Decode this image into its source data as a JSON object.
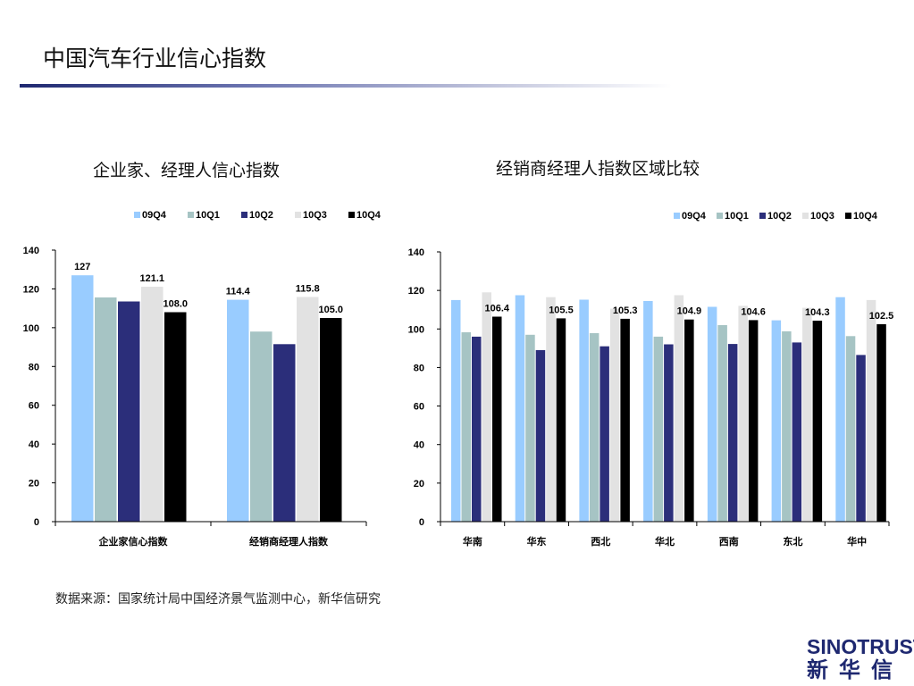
{
  "page": {
    "title": "中国汽车行业信心指数",
    "source": "数据来源：国家统计局中国经济景气监测中心，新华信研究",
    "logo_en": "SINOTRUST",
    "logo_cn": "新华信"
  },
  "colors": {
    "09Q4": "#99ccff",
    "10Q1": "#a6c4c4",
    "10Q2": "#2b2e7a",
    "10Q3": "#e2e2e2",
    "10Q4": "#000000",
    "title_rule": "#1e2870"
  },
  "chart_data": [
    {
      "type": "bar",
      "title": "企业家、经理人信心指数",
      "categories": [
        "企业家信心指数",
        "经销商经理人指数"
      ],
      "series": [
        {
          "name": "09Q4",
          "values": [
            127,
            114.4
          ]
        },
        {
          "name": "10Q1",
          "values": [
            115.6,
            98
          ]
        },
        {
          "name": "10Q2",
          "values": [
            113.5,
            91.5
          ]
        },
        {
          "name": "10Q3",
          "values": [
            121.1,
            115.8
          ]
        },
        {
          "name": "10Q4",
          "values": [
            108.0,
            105.0
          ]
        }
      ],
      "data_labels": [
        {
          "category": 0,
          "series": 0,
          "text": "127"
        },
        {
          "category": 0,
          "series": 3,
          "text": "121.1"
        },
        {
          "category": 0,
          "series": 4,
          "text": "108.0"
        },
        {
          "category": 1,
          "series": 0,
          "text": "114.4"
        },
        {
          "category": 1,
          "series": 3,
          "text": "115.8"
        },
        {
          "category": 1,
          "series": 4,
          "text": "105.0"
        }
      ],
      "ylim": [
        0,
        140
      ],
      "yticks": [
        "0",
        "20",
        "40",
        "60",
        "80",
        "100",
        "120",
        "140"
      ],
      "legend": "top",
      "grid": false
    },
    {
      "type": "bar",
      "title": "经销商经理人指数区域比较",
      "categories": [
        "华南",
        "华东",
        "西北",
        "华北",
        "西南",
        "东北",
        "华中"
      ],
      "series": [
        {
          "name": "09Q4",
          "values": [
            115,
            117.5,
            115.2,
            114.5,
            111.5,
            104.5,
            116.5
          ]
        },
        {
          "name": "10Q1",
          "values": [
            98.3,
            97,
            97.8,
            96,
            102,
            98.8,
            96.3
          ]
        },
        {
          "name": "10Q2",
          "values": [
            96,
            89,
            91,
            92,
            92.2,
            93,
            86.5
          ]
        },
        {
          "name": "10Q3",
          "values": [
            119,
            116.5,
            110.5,
            117.5,
            112,
            111,
            115
          ]
        },
        {
          "name": "10Q4",
          "values": [
            106.4,
            105.5,
            105.3,
            104.9,
            104.6,
            104.3,
            102.5
          ]
        }
      ],
      "data_labels": [
        {
          "category": 0,
          "series": 4,
          "text": "106.4"
        },
        {
          "category": 1,
          "series": 4,
          "text": "105.5"
        },
        {
          "category": 2,
          "series": 4,
          "text": "105.3"
        },
        {
          "category": 3,
          "series": 4,
          "text": "104.9"
        },
        {
          "category": 4,
          "series": 4,
          "text": "104.6"
        },
        {
          "category": 5,
          "series": 4,
          "text": "104.3"
        },
        {
          "category": 6,
          "series": 4,
          "text": "102.5"
        }
      ],
      "ylim": [
        0,
        140
      ],
      "yticks": [
        "0",
        "20",
        "40",
        "60",
        "80",
        "100",
        "120",
        "140"
      ],
      "legend": "top",
      "grid": false
    }
  ]
}
